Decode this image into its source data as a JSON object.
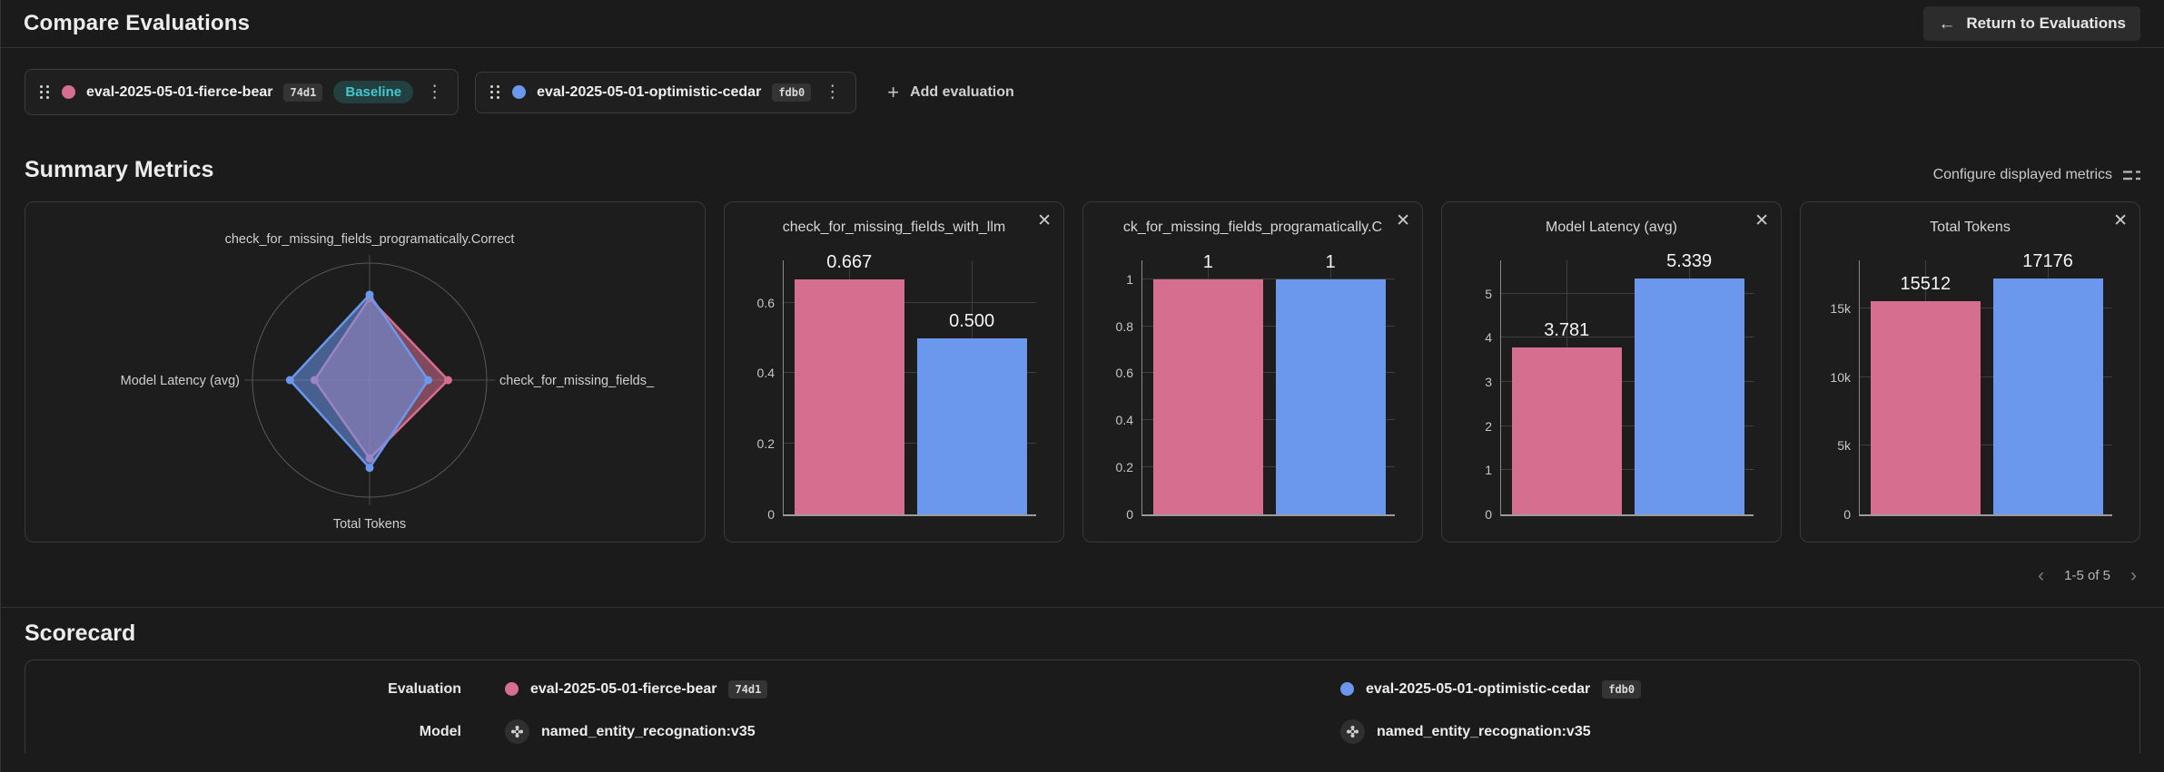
{
  "header": {
    "title": "Compare Evaluations",
    "return_button_label": "Return to Evaluations"
  },
  "evaluations": [
    {
      "name": "eval-2025-05-01-fierce-bear",
      "hash": "74d1",
      "badge": "Baseline",
      "color": "#d66e90"
    },
    {
      "name": "eval-2025-05-01-optimistic-cedar",
      "hash": "fdb0",
      "color": "#6b97ec"
    }
  ],
  "add_evaluation_label": "Add evaluation",
  "summary_metrics": {
    "heading": "Summary Metrics",
    "configure_label": "Configure displayed metrics",
    "pagination": "1-5 of 5"
  },
  "icons": {
    "back_arrow": "←",
    "plus": "+",
    "kebab": "⋮",
    "close": "✕",
    "chevron_left": "‹",
    "chevron_right": "›"
  },
  "chart_data": [
    {
      "type": "radar",
      "title": "",
      "axes": [
        "check_for_missing_fields_programatically.Correct",
        "check_for_missing_fields_",
        "Total Tokens",
        "Model Latency (avg)"
      ],
      "scale": "normalized 0-1, axes order: top, right, bottom, left",
      "series": [
        {
          "name": "eval-2025-05-01-fierce-bear",
          "color": "#d66e90",
          "values": [
            0.7,
            0.67,
            0.67,
            0.47
          ]
        },
        {
          "name": "eval-2025-05-01-optimistic-cedar",
          "color": "#6b97ec",
          "values": [
            0.73,
            0.5,
            0.75,
            0.68
          ]
        }
      ]
    },
    {
      "type": "bar",
      "title": "check_for_missing_fields_with_llm",
      "ylim": [
        0,
        0.72
      ],
      "ticks": [
        0,
        0.2,
        0.4,
        0.6
      ],
      "tick_labels": [
        "0",
        "0.2",
        "0.4",
        "0.6"
      ],
      "series": [
        {
          "name": "eval-2025-05-01-fierce-bear",
          "color": "#d66e90",
          "value": 0.667,
          "label": "0.667"
        },
        {
          "name": "eval-2025-05-01-optimistic-cedar",
          "color": "#6b97ec",
          "value": 0.5,
          "label": "0.500"
        }
      ]
    },
    {
      "type": "bar",
      "title": "ck_for_missing_fields_programatically.C",
      "ylim": [
        0,
        1.08
      ],
      "ticks": [
        0,
        0.2,
        0.4,
        0.6,
        0.8,
        1
      ],
      "tick_labels": [
        "0",
        "0.2",
        "0.4",
        "0.6",
        "0.8",
        "1"
      ],
      "series": [
        {
          "name": "eval-2025-05-01-fierce-bear",
          "color": "#d66e90",
          "value": 1,
          "label": "1"
        },
        {
          "name": "eval-2025-05-01-optimistic-cedar",
          "color": "#6b97ec",
          "value": 1,
          "label": "1"
        }
      ]
    },
    {
      "type": "bar",
      "title": "Model Latency (avg)",
      "ylim": [
        0,
        5.75
      ],
      "ticks": [
        0,
        1,
        2,
        3,
        4,
        5
      ],
      "tick_labels": [
        "0",
        "1",
        "2",
        "3",
        "4",
        "5"
      ],
      "series": [
        {
          "name": "eval-2025-05-01-fierce-bear",
          "color": "#d66e90",
          "value": 3.781,
          "label": "3.781"
        },
        {
          "name": "eval-2025-05-01-optimistic-cedar",
          "color": "#6b97ec",
          "value": 5.339,
          "label": "5.339"
        }
      ]
    },
    {
      "type": "bar",
      "title": "Total Tokens",
      "ylim": [
        0,
        18500
      ],
      "ticks": [
        0,
        5000,
        10000,
        15000
      ],
      "tick_labels": [
        "0",
        "5k",
        "10k",
        "15k"
      ],
      "series": [
        {
          "name": "eval-2025-05-01-fierce-bear",
          "color": "#d66e90",
          "value": 15512,
          "label": "15512"
        },
        {
          "name": "eval-2025-05-01-optimistic-cedar",
          "color": "#6b97ec",
          "value": 17176,
          "label": "17176"
        }
      ]
    }
  ],
  "scorecard": {
    "heading": "Scorecard",
    "rows": [
      {
        "label": "Evaluation",
        "values": [
          {
            "name": "eval-2025-05-01-fierce-bear",
            "hash": "74d1",
            "color": "#d66e90"
          },
          {
            "name": "eval-2025-05-01-optimistic-cedar",
            "hash": "fdb0",
            "color": "#6b97ec"
          }
        ]
      },
      {
        "label": "Model",
        "values": [
          {
            "name": "named_entity_recognation:v35"
          },
          {
            "name": "named_entity_recognation:v35"
          }
        ]
      }
    ]
  }
}
